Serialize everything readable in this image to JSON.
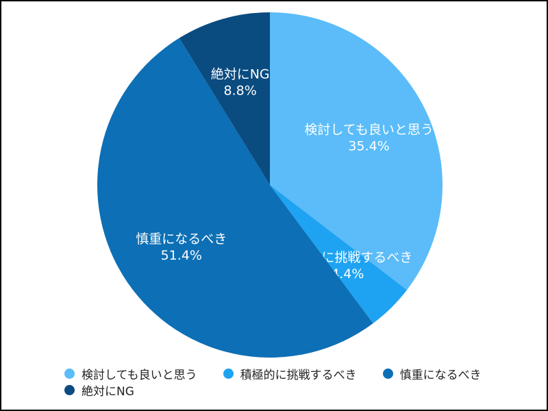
{
  "chart_data": {
    "type": "pie",
    "start_angle_deg": 0,
    "direction": "clockwise",
    "legend_position": "bottom",
    "slices": [
      {
        "label": "検討しても良いと思う",
        "value": 35.4,
        "value_label": "35.4%",
        "color": "#5bbcf9"
      },
      {
        "label": "積極的に挑戦するべき",
        "value": 4.4,
        "value_label": "4.4%",
        "color": "#1ea3f2"
      },
      {
        "label": "慎重になるべき",
        "value": 51.4,
        "value_label": "51.4%",
        "color": "#0d6fb5"
      },
      {
        "label": "絶対にNG",
        "value": 8.8,
        "value_label": "8.8%",
        "color": "#0a4b80"
      }
    ]
  }
}
